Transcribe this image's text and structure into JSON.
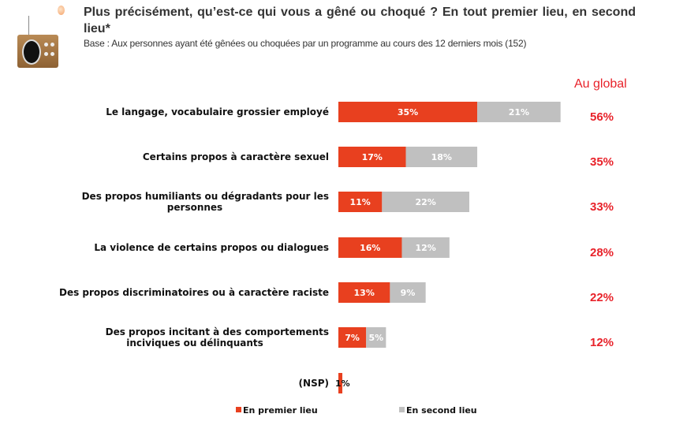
{
  "header": {
    "title": "Plus précisément, qu’est-ce qui vous a gêné ou choqué ? En tout premier lieu, en second lieu*",
    "subtitle": "Base : Aux personnes ayant été gênées ou choquées par un programme au cours des 12 derniers mois (152)",
    "global_header": "Au global"
  },
  "chart_data": {
    "type": "bar",
    "orientation": "horizontal",
    "stacked": true,
    "categories": [
      [
        "Le langage, vocabulaire grossier employé"
      ],
      [
        "Certains propos à caractère sexuel"
      ],
      [
        "Des propos humiliants ou dégradants pour les",
        "personnes"
      ],
      [
        "La violence de certains propos ou dialogues"
      ],
      [
        "Des propos discriminatoires ou à caractère raciste"
      ],
      [
        "Des propos incitant à des comportements",
        "inciviques ou délinquants"
      ],
      [
        "(NSP)"
      ]
    ],
    "series": [
      {
        "name": "En premier lieu",
        "color": "#e8401f",
        "values": [
          35,
          17,
          11,
          16,
          13,
          7,
          1
        ]
      },
      {
        "name": "En second lieu",
        "color": "#c0c0c0",
        "values": [
          21,
          18,
          22,
          12,
          9,
          5,
          0
        ]
      }
    ],
    "totals": [
      "56%",
      "35%",
      "33%",
      "28%",
      "22%",
      "12%",
      ""
    ],
    "value_suffix": "%",
    "legend": "bottom",
    "grid": false
  }
}
